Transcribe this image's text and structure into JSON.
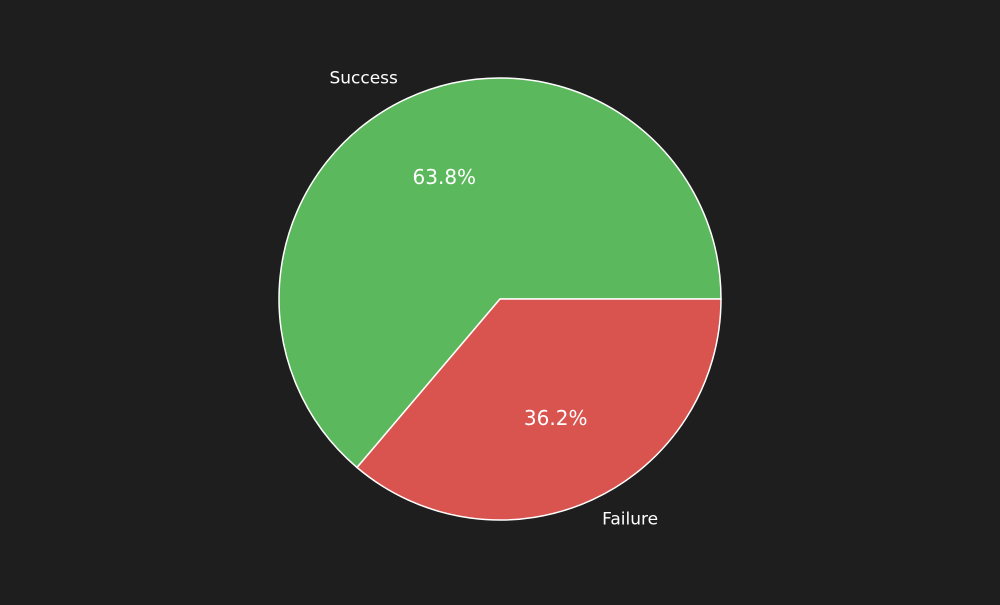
{
  "chart_data": {
    "type": "pie",
    "categories": [
      "Success",
      "Failure"
    ],
    "values": [
      63.8,
      36.2
    ],
    "value_labels": [
      "63.8%",
      "36.2%"
    ],
    "colors": [
      "#5cb85c",
      "#d9534f"
    ],
    "edge_color": "#ffffff",
    "background": "#1e1e1e",
    "start_angle_deg": 0,
    "direction": "counterclockwise",
    "title": "",
    "legend": "none"
  }
}
